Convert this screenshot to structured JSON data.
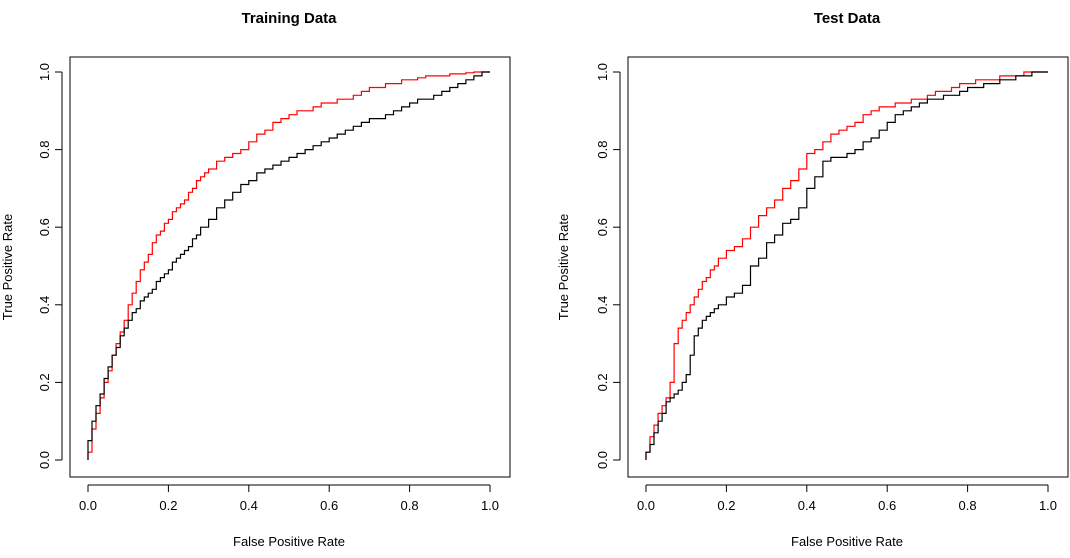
{
  "chart_data": [
    {
      "type": "line",
      "title": "Training Data",
      "xlabel": "False Positive Rate",
      "ylabel": "True Positive Rate",
      "xlim": [
        0,
        1
      ],
      "ylim": [
        0,
        1
      ],
      "xticks": [
        "0.0",
        "0.2",
        "0.4",
        "0.6",
        "0.8",
        "1.0"
      ],
      "yticks": [
        "0.0",
        "0.2",
        "0.4",
        "0.6",
        "0.8",
        "1.0"
      ],
      "grid": false,
      "step": true,
      "series": [
        {
          "color": "#ff0000",
          "x": [
            0,
            0,
            0.01,
            0.02,
            0.03,
            0.04,
            0.05,
            0.06,
            0.07,
            0.08,
            0.09,
            0.1,
            0.11,
            0.12,
            0.13,
            0.14,
            0.15,
            0.16,
            0.17,
            0.18,
            0.19,
            0.2,
            0.21,
            0.22,
            0.23,
            0.24,
            0.25,
            0.26,
            0.27,
            0.28,
            0.29,
            0.3,
            0.32,
            0.34,
            0.36,
            0.38,
            0.4,
            0.42,
            0.44,
            0.46,
            0.48,
            0.5,
            0.52,
            0.54,
            0.56,
            0.58,
            0.6,
            0.62,
            0.64,
            0.66,
            0.68,
            0.7,
            0.72,
            0.74,
            0.76,
            0.78,
            0.8,
            0.82,
            0.84,
            0.86,
            0.88,
            0.9,
            0.92,
            0.94,
            0.96,
            0.98,
            1.0
          ],
          "y": [
            0,
            0.02,
            0.08,
            0.12,
            0.16,
            0.2,
            0.23,
            0.27,
            0.3,
            0.33,
            0.36,
            0.4,
            0.43,
            0.46,
            0.49,
            0.51,
            0.53,
            0.56,
            0.58,
            0.59,
            0.61,
            0.62,
            0.64,
            0.65,
            0.66,
            0.67,
            0.69,
            0.7,
            0.72,
            0.73,
            0.74,
            0.75,
            0.77,
            0.78,
            0.79,
            0.8,
            0.82,
            0.84,
            0.85,
            0.87,
            0.88,
            0.89,
            0.9,
            0.9,
            0.91,
            0.92,
            0.92,
            0.93,
            0.93,
            0.94,
            0.95,
            0.96,
            0.96,
            0.97,
            0.97,
            0.98,
            0.98,
            0.985,
            0.99,
            0.99,
            0.99,
            0.995,
            0.995,
            0.998,
            1.0,
            1.0,
            1.0
          ]
        },
        {
          "color": "#000000",
          "x": [
            0,
            0,
            0.01,
            0.02,
            0.03,
            0.04,
            0.05,
            0.06,
            0.07,
            0.08,
            0.09,
            0.1,
            0.11,
            0.12,
            0.13,
            0.14,
            0.15,
            0.16,
            0.17,
            0.18,
            0.19,
            0.2,
            0.21,
            0.22,
            0.23,
            0.24,
            0.25,
            0.26,
            0.27,
            0.28,
            0.3,
            0.32,
            0.34,
            0.36,
            0.38,
            0.4,
            0.42,
            0.44,
            0.46,
            0.48,
            0.5,
            0.52,
            0.54,
            0.56,
            0.58,
            0.6,
            0.62,
            0.64,
            0.66,
            0.68,
            0.7,
            0.72,
            0.74,
            0.76,
            0.78,
            0.8,
            0.82,
            0.84,
            0.86,
            0.88,
            0.9,
            0.92,
            0.94,
            0.96,
            0.98,
            1.0
          ],
          "y": [
            0,
            0.05,
            0.1,
            0.14,
            0.17,
            0.21,
            0.24,
            0.27,
            0.29,
            0.32,
            0.34,
            0.36,
            0.38,
            0.39,
            0.41,
            0.42,
            0.43,
            0.44,
            0.46,
            0.47,
            0.48,
            0.49,
            0.51,
            0.52,
            0.53,
            0.54,
            0.55,
            0.57,
            0.58,
            0.6,
            0.62,
            0.65,
            0.67,
            0.69,
            0.71,
            0.72,
            0.74,
            0.75,
            0.76,
            0.77,
            0.78,
            0.79,
            0.8,
            0.81,
            0.82,
            0.83,
            0.84,
            0.85,
            0.86,
            0.87,
            0.88,
            0.88,
            0.89,
            0.9,
            0.91,
            0.92,
            0.93,
            0.93,
            0.94,
            0.95,
            0.96,
            0.97,
            0.98,
            0.99,
            1.0,
            1.0
          ]
        }
      ]
    },
    {
      "type": "line",
      "title": "Test Data",
      "xlabel": "False Positive Rate",
      "ylabel": "True Positive Rate",
      "xlim": [
        0,
        1
      ],
      "ylim": [
        0,
        1
      ],
      "xticks": [
        "0.0",
        "0.2",
        "0.4",
        "0.6",
        "0.8",
        "1.0"
      ],
      "yticks": [
        "0.0",
        "0.2",
        "0.4",
        "0.6",
        "0.8",
        "1.0"
      ],
      "grid": false,
      "step": true,
      "series": [
        {
          "color": "#ff0000",
          "x": [
            0,
            0,
            0.01,
            0.02,
            0.03,
            0.04,
            0.05,
            0.06,
            0.07,
            0.08,
            0.09,
            0.1,
            0.11,
            0.12,
            0.13,
            0.14,
            0.15,
            0.16,
            0.17,
            0.18,
            0.2,
            0.22,
            0.24,
            0.26,
            0.28,
            0.3,
            0.32,
            0.34,
            0.36,
            0.38,
            0.4,
            0.42,
            0.44,
            0.46,
            0.48,
            0.5,
            0.52,
            0.54,
            0.56,
            0.58,
            0.6,
            0.62,
            0.64,
            0.66,
            0.68,
            0.7,
            0.72,
            0.74,
            0.76,
            0.78,
            0.8,
            0.82,
            0.84,
            0.86,
            0.88,
            0.9,
            0.92,
            0.94,
            0.96,
            0.98,
            1.0
          ],
          "y": [
            0,
            0.02,
            0.06,
            0.09,
            0.12,
            0.14,
            0.16,
            0.2,
            0.3,
            0.34,
            0.36,
            0.38,
            0.4,
            0.42,
            0.44,
            0.46,
            0.47,
            0.49,
            0.5,
            0.52,
            0.54,
            0.55,
            0.57,
            0.6,
            0.63,
            0.65,
            0.67,
            0.7,
            0.72,
            0.75,
            0.79,
            0.8,
            0.82,
            0.84,
            0.85,
            0.86,
            0.87,
            0.89,
            0.9,
            0.91,
            0.91,
            0.92,
            0.92,
            0.93,
            0.93,
            0.94,
            0.95,
            0.95,
            0.96,
            0.97,
            0.97,
            0.98,
            0.98,
            0.98,
            0.99,
            0.99,
            0.99,
            1.0,
            1.0,
            1.0,
            1.0
          ]
        },
        {
          "color": "#000000",
          "x": [
            0,
            0,
            0.01,
            0.02,
            0.03,
            0.04,
            0.05,
            0.06,
            0.07,
            0.08,
            0.09,
            0.1,
            0.11,
            0.12,
            0.13,
            0.14,
            0.15,
            0.16,
            0.17,
            0.18,
            0.2,
            0.22,
            0.24,
            0.26,
            0.28,
            0.3,
            0.32,
            0.34,
            0.36,
            0.38,
            0.4,
            0.42,
            0.44,
            0.46,
            0.48,
            0.5,
            0.52,
            0.54,
            0.56,
            0.58,
            0.6,
            0.62,
            0.64,
            0.66,
            0.68,
            0.7,
            0.72,
            0.74,
            0.76,
            0.78,
            0.8,
            0.82,
            0.84,
            0.86,
            0.88,
            0.9,
            0.92,
            0.94,
            0.96,
            0.98,
            1.0
          ],
          "y": [
            0,
            0.02,
            0.04,
            0.07,
            0.1,
            0.12,
            0.15,
            0.16,
            0.17,
            0.18,
            0.2,
            0.22,
            0.27,
            0.32,
            0.34,
            0.36,
            0.37,
            0.38,
            0.39,
            0.4,
            0.42,
            0.43,
            0.45,
            0.5,
            0.52,
            0.56,
            0.58,
            0.61,
            0.62,
            0.65,
            0.7,
            0.73,
            0.77,
            0.78,
            0.78,
            0.79,
            0.8,
            0.82,
            0.83,
            0.85,
            0.87,
            0.89,
            0.9,
            0.91,
            0.92,
            0.93,
            0.93,
            0.94,
            0.94,
            0.95,
            0.96,
            0.96,
            0.97,
            0.97,
            0.98,
            0.98,
            0.99,
            0.99,
            1.0,
            1.0,
            1.0
          ]
        }
      ]
    }
  ]
}
